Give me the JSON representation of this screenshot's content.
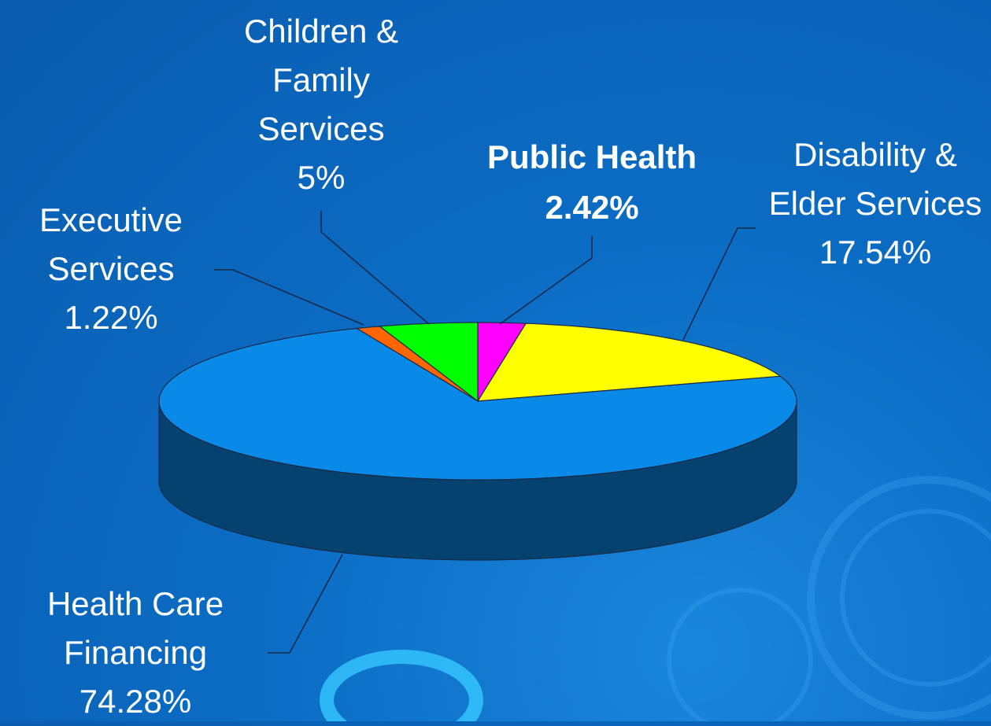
{
  "chart_data": {
    "type": "pie",
    "categories": [
      "Public Health",
      "Disability & Elder Services",
      "Health Care Financing",
      "Executive Services",
      "Children & Family Services"
    ],
    "values": [
      2.42,
      17.54,
      74.28,
      1.22,
      5
    ],
    "value_labels": [
      "2.42%",
      "17.54%",
      "74.28%",
      "1.22%",
      "5%"
    ],
    "colors": [
      "#ff00ff",
      "#ffff00",
      "#0a8ae8",
      "#ff6600",
      "#00ff00"
    ]
  }
}
